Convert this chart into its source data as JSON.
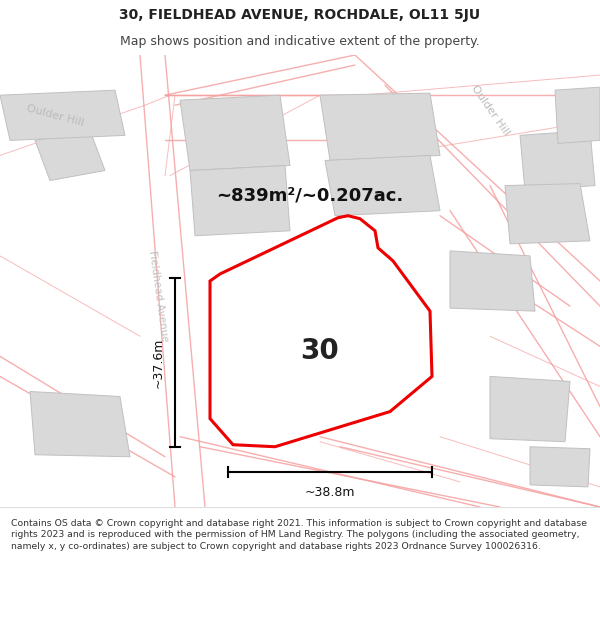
{
  "title_line1": "30, FIELDHEAD AVENUE, ROCHDALE, OL11 5JU",
  "title_line2": "Map shows position and indicative extent of the property.",
  "footer_text": "Contains OS data © Crown copyright and database right 2021. This information is subject to Crown copyright and database rights 2023 and is reproduced with the permission of HM Land Registry. The polygons (including the associated geometry, namely x, y co-ordinates) are subject to Crown copyright and database rights 2023 Ordnance Survey 100026316.",
  "property_number": "30",
  "area_text": "~839m²/~0.207ac.",
  "dim_width": "~38.8m",
  "dim_height": "~37.6m",
  "map_bg": "#f7f7f7",
  "road_color": "#f5a0a0",
  "road_lw": 1.0,
  "building_fill": "#d9d9d9",
  "building_edge": "#c0c0c0",
  "property_fill": "#ffffff",
  "property_edge": "#ee0000",
  "property_lw": 2.2,
  "text_color": "#333333",
  "dim_color": "#111111",
  "street_color": "#c0c0c0",
  "title_fs": 10,
  "subtitle_fs": 9,
  "area_fs": 13,
  "num_fs": 20,
  "dim_fs": 9,
  "footer_fs": 6.7
}
